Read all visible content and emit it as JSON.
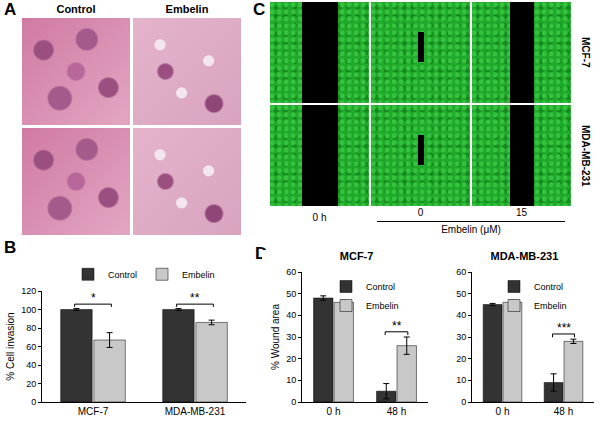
{
  "figure": {
    "panel_labels": [
      "A",
      "B",
      "C",
      "D"
    ],
    "panel_a": {
      "columns": [
        "Control",
        "Embelin"
      ]
    },
    "panel_c": {
      "rows": [
        "MCF-7",
        "MDA-MB-231"
      ],
      "columns": [
        "0 h",
        "0",
        "15"
      ],
      "group_label": "Embelin (μM)"
    }
  },
  "chart_data": [
    {
      "type": "bar",
      "ylabel": "% Cell invasion",
      "categories": [
        "MCF-7",
        "MDA-MB-231"
      ],
      "series": [
        {
          "name": "Control",
          "color": "#333333",
          "values": [
            100,
            100
          ],
          "errors": [
            1,
            1
          ]
        },
        {
          "name": "Embelin",
          "color": "#c8c8c8",
          "values": [
            67,
            86
          ],
          "errors": [
            8,
            2.5
          ]
        }
      ],
      "ylim": [
        0,
        120
      ],
      "yticks": [
        0,
        20,
        40,
        60,
        80,
        100,
        120
      ],
      "grid": false,
      "legend": "top",
      "annotations": [
        {
          "category": "MCF-7",
          "text": "*"
        },
        {
          "category": "MDA-MB-231",
          "text": "**"
        }
      ]
    },
    {
      "type": "bar",
      "title": "MCF-7",
      "ylabel": "% Wound area",
      "categories": [
        "0 h",
        "48 h"
      ],
      "series": [
        {
          "name": "Control",
          "color": "#333333",
          "values": [
            48,
            5
          ],
          "errors": [
            1,
            3.5
          ]
        },
        {
          "name": "Embelin",
          "color": "#c8c8c8",
          "values": [
            46,
            26
          ],
          "errors": [
            1,
            4
          ]
        }
      ],
      "ylim": [
        0,
        60
      ],
      "yticks": [
        0,
        10,
        20,
        30,
        40,
        50,
        60
      ],
      "grid": false,
      "legend": "upper center",
      "annotations": [
        {
          "category": "48 h",
          "text": "**"
        }
      ]
    },
    {
      "type": "bar",
      "title": "MDA-MB-231",
      "categories": [
        "0 h",
        "48 h"
      ],
      "series": [
        {
          "name": "Control",
          "color": "#333333",
          "values": [
            45,
            9
          ],
          "errors": [
            0.5,
            4
          ]
        },
        {
          "name": "Embelin",
          "color": "#c8c8c8",
          "values": [
            46,
            28
          ],
          "errors": [
            1,
            1
          ]
        }
      ],
      "ylim": [
        0,
        60
      ],
      "yticks": [
        0,
        10,
        20,
        30,
        40,
        50,
        60
      ],
      "grid": false,
      "legend": "upper center",
      "annotations": [
        {
          "category": "48 h",
          "text": "***"
        }
      ]
    }
  ]
}
